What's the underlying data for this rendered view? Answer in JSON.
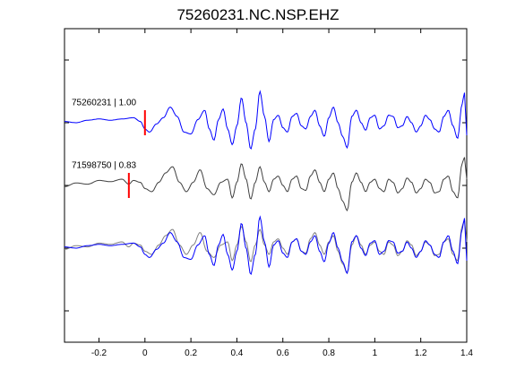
{
  "chart_data": {
    "type": "line",
    "title": "75260231.NC.NSP.EHZ",
    "xlabel": "",
    "ylabel": "",
    "xlim": [
      -0.35,
      1.4
    ],
    "x_ticks": [
      -0.2,
      0,
      0.2,
      0.4,
      0.6,
      0.8,
      1,
      1.2,
      1.4
    ],
    "x_tick_labels": [
      "-0.2",
      "0",
      "0.2",
      "0.4",
      "0.6",
      "0.8",
      "1",
      "1.2",
      "1.4"
    ],
    "ylim": [
      -3.5,
      1.5
    ],
    "y_ticks": [
      1,
      0,
      -1,
      -2,
      -3
    ],
    "y_tick_labels_shown": false,
    "grid": false,
    "colors": {
      "template": "#0000ff",
      "match": "#404040",
      "overlay_match": "#808080",
      "pick": "#ff0000"
    },
    "traces": [
      {
        "label": "75260231 | 1.00",
        "offset": 0,
        "color": "#0000ff",
        "pick_time": 0.0
      },
      {
        "label": "71598750 | 0.83",
        "offset": -1,
        "color": "#404040",
        "pick_time": -0.07
      },
      {
        "label": "",
        "offset": -2,
        "overlay": true
      }
    ],
    "waveform_anchors": {
      "template": [
        [
          -0.35,
          0.02
        ],
        [
          -0.3,
          0.0
        ],
        [
          -0.25,
          0.04
        ],
        [
          -0.2,
          0.06
        ],
        [
          -0.15,
          0.04
        ],
        [
          -0.1,
          0.06
        ],
        [
          -0.05,
          0.08
        ],
        [
          -0.02,
          0.02
        ],
        [
          0.0,
          -0.1
        ],
        [
          0.02,
          -0.15
        ],
        [
          0.05,
          -0.02
        ],
        [
          0.08,
          0.08
        ],
        [
          0.11,
          0.25
        ],
        [
          0.14,
          0.1
        ],
        [
          0.17,
          -0.15
        ],
        [
          0.2,
          -0.18
        ],
        [
          0.23,
          0.05
        ],
        [
          0.26,
          0.2
        ],
        [
          0.28,
          -0.1
        ],
        [
          0.3,
          -0.28
        ],
        [
          0.32,
          0.05
        ],
        [
          0.34,
          0.22
        ],
        [
          0.36,
          -0.1
        ],
        [
          0.38,
          -0.35
        ],
        [
          0.4,
          -0.05
        ],
        [
          0.42,
          0.4
        ],
        [
          0.44,
          0.0
        ],
        [
          0.46,
          -0.42
        ],
        [
          0.48,
          -0.1
        ],
        [
          0.5,
          0.5
        ],
        [
          0.52,
          0.1
        ],
        [
          0.54,
          -0.3
        ],
        [
          0.56,
          0.05
        ],
        [
          0.58,
          0.12
        ],
        [
          0.6,
          -0.08
        ],
        [
          0.62,
          -0.15
        ],
        [
          0.64,
          0.1
        ],
        [
          0.66,
          0.15
        ],
        [
          0.68,
          -0.05
        ],
        [
          0.7,
          -0.1
        ],
        [
          0.72,
          0.1
        ],
        [
          0.74,
          0.2
        ],
        [
          0.76,
          -0.05
        ],
        [
          0.78,
          -0.22
        ],
        [
          0.8,
          0.08
        ],
        [
          0.82,
          0.25
        ],
        [
          0.84,
          0.0
        ],
        [
          0.86,
          -0.22
        ],
        [
          0.88,
          -0.4
        ],
        [
          0.9,
          0.1
        ],
        [
          0.92,
          0.2
        ],
        [
          0.94,
          0.0
        ],
        [
          0.96,
          -0.12
        ],
        [
          0.98,
          0.08
        ],
        [
          1.0,
          0.12
        ],
        [
          1.02,
          -0.1
        ],
        [
          1.04,
          -0.05
        ],
        [
          1.06,
          0.12
        ],
        [
          1.08,
          0.1
        ],
        [
          1.1,
          -0.08
        ],
        [
          1.12,
          -0.05
        ],
        [
          1.14,
          0.1
        ],
        [
          1.16,
          0.0
        ],
        [
          1.18,
          -0.15
        ],
        [
          1.2,
          -0.05
        ],
        [
          1.22,
          0.12
        ],
        [
          1.24,
          0.05
        ],
        [
          1.26,
          -0.1
        ],
        [
          1.28,
          -0.15
        ],
        [
          1.3,
          0.1
        ],
        [
          1.32,
          0.2
        ],
        [
          1.34,
          -0.05
        ],
        [
          1.36,
          -0.25
        ],
        [
          1.38,
          0.3
        ],
        [
          1.39,
          0.48
        ],
        [
          1.4,
          -0.2
        ]
      ],
      "match": [
        [
          -0.35,
          -0.02
        ],
        [
          -0.3,
          0.04
        ],
        [
          -0.25,
          0.02
        ],
        [
          -0.2,
          0.08
        ],
        [
          -0.15,
          0.06
        ],
        [
          -0.1,
          0.1
        ],
        [
          -0.07,
          0.02
        ],
        [
          -0.05,
          0.08
        ],
        [
          -0.02,
          0.05
        ],
        [
          0.0,
          -0.05
        ],
        [
          0.03,
          -0.1
        ],
        [
          0.06,
          0.05
        ],
        [
          0.09,
          0.2
        ],
        [
          0.12,
          0.3
        ],
        [
          0.15,
          0.05
        ],
        [
          0.18,
          -0.1
        ],
        [
          0.21,
          0.05
        ],
        [
          0.24,
          0.25
        ],
        [
          0.27,
          -0.05
        ],
        [
          0.3,
          -0.15
        ],
        [
          0.33,
          0.05
        ],
        [
          0.36,
          0.1
        ],
        [
          0.38,
          -0.2
        ],
        [
          0.4,
          0.05
        ],
        [
          0.42,
          0.35
        ],
        [
          0.44,
          0.1
        ],
        [
          0.46,
          -0.22
        ],
        [
          0.48,
          0.05
        ],
        [
          0.5,
          0.3
        ],
        [
          0.52,
          0.05
        ],
        [
          0.54,
          -0.1
        ],
        [
          0.56,
          0.1
        ],
        [
          0.58,
          0.15
        ],
        [
          0.6,
          0.0
        ],
        [
          0.62,
          -0.1
        ],
        [
          0.64,
          0.1
        ],
        [
          0.66,
          0.15
        ],
        [
          0.68,
          -0.05
        ],
        [
          0.7,
          -0.08
        ],
        [
          0.72,
          0.15
        ],
        [
          0.74,
          0.25
        ],
        [
          0.76,
          0.05
        ],
        [
          0.78,
          -0.1
        ],
        [
          0.8,
          0.1
        ],
        [
          0.82,
          0.2
        ],
        [
          0.84,
          -0.05
        ],
        [
          0.86,
          -0.25
        ],
        [
          0.88,
          -0.4
        ],
        [
          0.9,
          0.05
        ],
        [
          0.92,
          0.2
        ],
        [
          0.94,
          0.05
        ],
        [
          0.96,
          -0.1
        ],
        [
          0.98,
          0.05
        ],
        [
          1.0,
          0.1
        ],
        [
          1.02,
          -0.05
        ],
        [
          1.04,
          -0.1
        ],
        [
          1.06,
          0.1
        ],
        [
          1.08,
          0.05
        ],
        [
          1.1,
          -0.12
        ],
        [
          1.12,
          -0.05
        ],
        [
          1.14,
          0.12
        ],
        [
          1.16,
          0.05
        ],
        [
          1.18,
          -0.12
        ],
        [
          1.2,
          -0.05
        ],
        [
          1.22,
          0.1
        ],
        [
          1.24,
          0.05
        ],
        [
          1.26,
          -0.12
        ],
        [
          1.28,
          -0.1
        ],
        [
          1.3,
          0.1
        ],
        [
          1.32,
          0.15
        ],
        [
          1.34,
          -0.1
        ],
        [
          1.36,
          -0.2
        ],
        [
          1.38,
          0.35
        ],
        [
          1.39,
          0.45
        ],
        [
          1.4,
          0.1
        ]
      ]
    }
  }
}
